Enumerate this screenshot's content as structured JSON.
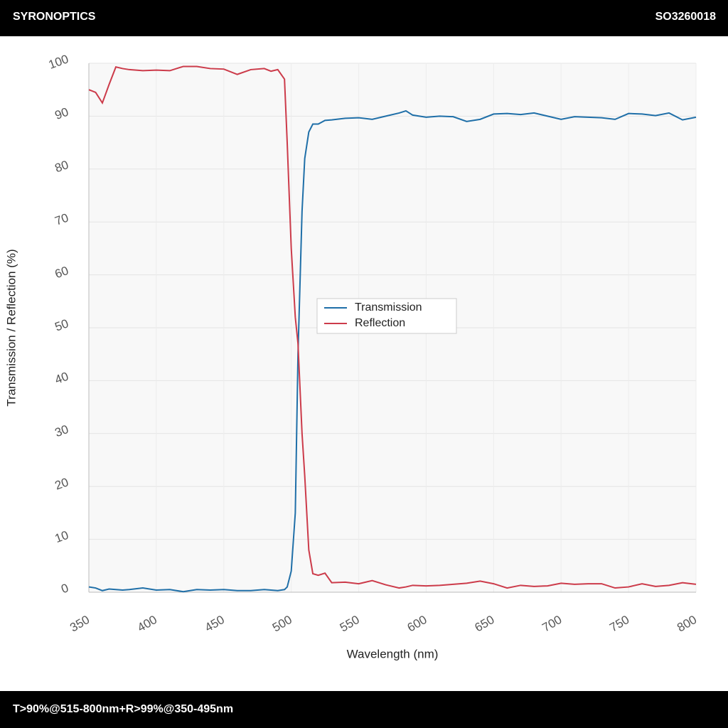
{
  "header": {
    "brand": "SYRONOPTICS",
    "code": "SO3260018"
  },
  "footer": {
    "text": "T>90%@515-800nm+R>99%@350-495nm"
  },
  "chart_data": {
    "type": "line",
    "xlabel": "Wavelength (nm)",
    "ylabel": "Transmission / Reflection (%)",
    "x": [
      350,
      355,
      360,
      365,
      370,
      375,
      380,
      390,
      400,
      410,
      420,
      430,
      440,
      450,
      460,
      470,
      480,
      485,
      490,
      495,
      497,
      500,
      503,
      505,
      508,
      510,
      513,
      516,
      520,
      525,
      530,
      540,
      550,
      560,
      570,
      580,
      585,
      590,
      600,
      610,
      620,
      630,
      640,
      650,
      660,
      670,
      680,
      690,
      700,
      710,
      720,
      730,
      740,
      750,
      760,
      770,
      780,
      790,
      800
    ],
    "series": [
      {
        "name": "Transmission",
        "color": "#1f6fa8",
        "values": [
          1,
          0.8,
          0.3,
          0.6,
          0.5,
          0.4,
          0.5,
          0.8,
          0.4,
          0.5,
          0.1,
          0.5,
          0.4,
          0.5,
          0.3,
          0.3,
          0.5,
          0.4,
          0.3,
          0.5,
          1,
          4,
          15,
          45,
          72,
          82,
          87,
          88.5,
          88.5,
          89.2,
          89.3,
          89.6,
          89.7,
          89.4,
          90,
          90.6,
          91,
          90.2,
          89.8,
          90,
          89.9,
          89,
          89.4,
          90.4,
          90.5,
          90.3,
          90.6,
          90,
          89.4,
          89.9,
          89.8,
          89.7,
          89.4,
          90.5,
          90.4,
          90.1,
          90.6,
          89.3,
          89.8
        ]
      },
      {
        "name": "Reflection",
        "color": "#cc3b4a",
        "values": [
          95,
          94.5,
          92.5,
          96,
          99.3,
          99,
          98.8,
          98.6,
          98.7,
          98.6,
          99.4,
          99.4,
          99,
          98.9,
          97.9,
          98.8,
          99,
          98.5,
          98.8,
          97,
          85,
          65,
          52,
          47,
          30,
          22,
          8,
          3.5,
          3.2,
          3.6,
          1.8,
          1.9,
          1.6,
          2.2,
          1.4,
          0.8,
          1,
          1.3,
          1.2,
          1.3,
          1.5,
          1.7,
          2.1,
          1.6,
          0.8,
          1.3,
          1.1,
          1.2,
          1.7,
          1.5,
          1.6,
          1.6,
          0.8,
          1,
          1.6,
          1.1,
          1.3,
          1.8,
          1.5
        ]
      }
    ],
    "xlim": [
      350,
      800
    ],
    "xticks": [
      350,
      400,
      450,
      500,
      550,
      600,
      650,
      700,
      750,
      800
    ],
    "ylim": [
      0,
      100
    ],
    "yticks": [
      0,
      10,
      20,
      30,
      40,
      50,
      60,
      70,
      80,
      90,
      100
    ],
    "grid": true,
    "legend": "center"
  }
}
